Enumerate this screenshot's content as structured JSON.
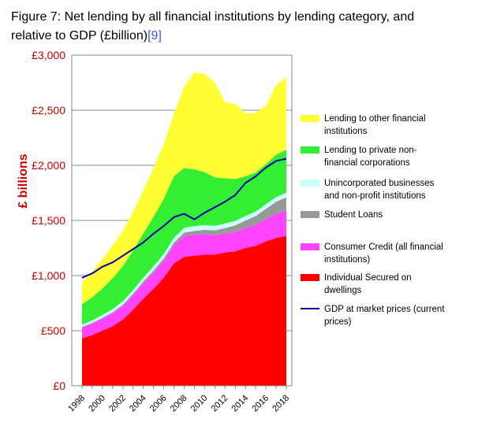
{
  "caption": {
    "line1": "Figure 7: Net lending by all financial institutions by lending category, and",
    "line2": "relative to GDP (£billion)",
    "ref": "[9]"
  },
  "chart_data": {
    "type": "area",
    "title": "Figure 7: Net lending by all financial institutions by lending category, and relative to GDP (£billion)",
    "ylabel": "£ billions",
    "xlabel": "",
    "ylim": [
      0,
      3000
    ],
    "xlim": [
      1998,
      2018
    ],
    "grid": true,
    "legend_position": "right",
    "y_ticks": [
      "£0",
      "£500",
      "£1,000",
      "£1,500",
      "£2,000",
      "£2,500",
      "£3,000"
    ],
    "y_tick_values": [
      0,
      500,
      1000,
      1500,
      2000,
      2500,
      3000
    ],
    "x_ticks": [
      "1998",
      "2000",
      "2002",
      "2004",
      "2006",
      "2008",
      "2010",
      "2012",
      "2014",
      "2016",
      "2018"
    ],
    "x": [
      1998,
      1999,
      2000,
      2001,
      2002,
      2003,
      2004,
      2005,
      2006,
      2007,
      2008,
      2009,
      2010,
      2011,
      2012,
      2013,
      2014,
      2015,
      2016,
      2017,
      2018
    ],
    "stacked": true,
    "series": [
      {
        "name": "Individual Secured on dwellings",
        "color": "#ff0000",
        "values": [
          430,
          460,
          500,
          540,
          600,
          690,
          790,
          880,
          980,
          1110,
          1170,
          1180,
          1190,
          1190,
          1210,
          1220,
          1250,
          1270,
          1310,
          1340,
          1360
        ]
      },
      {
        "name": "Consumer Credit (all financial institutions)",
        "color": "#ff44ff",
        "values": [
          100,
          105,
          110,
          118,
          125,
          132,
          140,
          148,
          155,
          165,
          190,
          190,
          185,
          175,
          170,
          175,
          180,
          190,
          200,
          220,
          230
        ]
      },
      {
        "name": "Student  Loans",
        "color": "#999999",
        "values": [
          5,
          6,
          8,
          10,
          12,
          14,
          16,
          18,
          20,
          25,
          30,
          35,
          40,
          45,
          50,
          60,
          70,
          80,
          95,
          110,
          120
        ]
      },
      {
        "name": "Unincorporated businesses and non-profit institutions",
        "color": "#ccffff",
        "values": [
          20,
          22,
          25,
          28,
          30,
          32,
          35,
          38,
          40,
          42,
          45,
          44,
          43,
          42,
          42,
          41,
          41,
          41,
          42,
          42,
          42
        ]
      },
      {
        "name": "Lending to private non-financial corporations",
        "color": "#33ee33",
        "values": [
          185,
          210,
          240,
          280,
          320,
          360,
          400,
          450,
          500,
          560,
          540,
          515,
          480,
          440,
          410,
          380,
          360,
          355,
          365,
          385,
          390
        ]
      },
      {
        "name": "Lending to other financial institutions",
        "color": "#ffff33",
        "values": [
          200,
          230,
          270,
          300,
          320,
          350,
          390,
          440,
          500,
          570,
          740,
          880,
          890,
          860,
          690,
          680,
          570,
          540,
          530,
          630,
          660
        ]
      }
    ],
    "line": {
      "name": "GDP at market prices (current prices)",
      "color": "#0000aa",
      "values": [
        980,
        1020,
        1080,
        1120,
        1180,
        1240,
        1300,
        1380,
        1450,
        1530,
        1560,
        1510,
        1570,
        1620,
        1670,
        1730,
        1840,
        1900,
        1980,
        2040,
        2060
      ]
    },
    "legend_order": [
      "Lending to other financial institutions",
      "Lending to private non-financial corporations",
      "Unincorporated businesses and non-profit institutions",
      "Student  Loans",
      "Consumer Credit (all financial institutions)",
      "Individual Secured on dwellings",
      "GDP at market prices (current prices)"
    ],
    "legend_lines": {
      "Lending to other financial institutions": [
        "Lending to other financial",
        "institutions"
      ],
      "Lending to private non-financial corporations": [
        "Lending to private non-",
        "financial corporations"
      ],
      "Unincorporated businesses and non-profit institutions": [
        "Unincorporated businesses",
        "and non-profit institutions"
      ],
      "Student  Loans": [
        "Student  Loans"
      ],
      "Consumer Credit (all financial institutions)": [
        "Consumer Credit (all financial",
        "institutions)"
      ],
      "Individual Secured on dwellings": [
        "Individual Secured on",
        "dwellings"
      ],
      "GDP at market prices (current prices)": [
        "GDP at market prices (current",
        "prices)"
      ]
    }
  }
}
